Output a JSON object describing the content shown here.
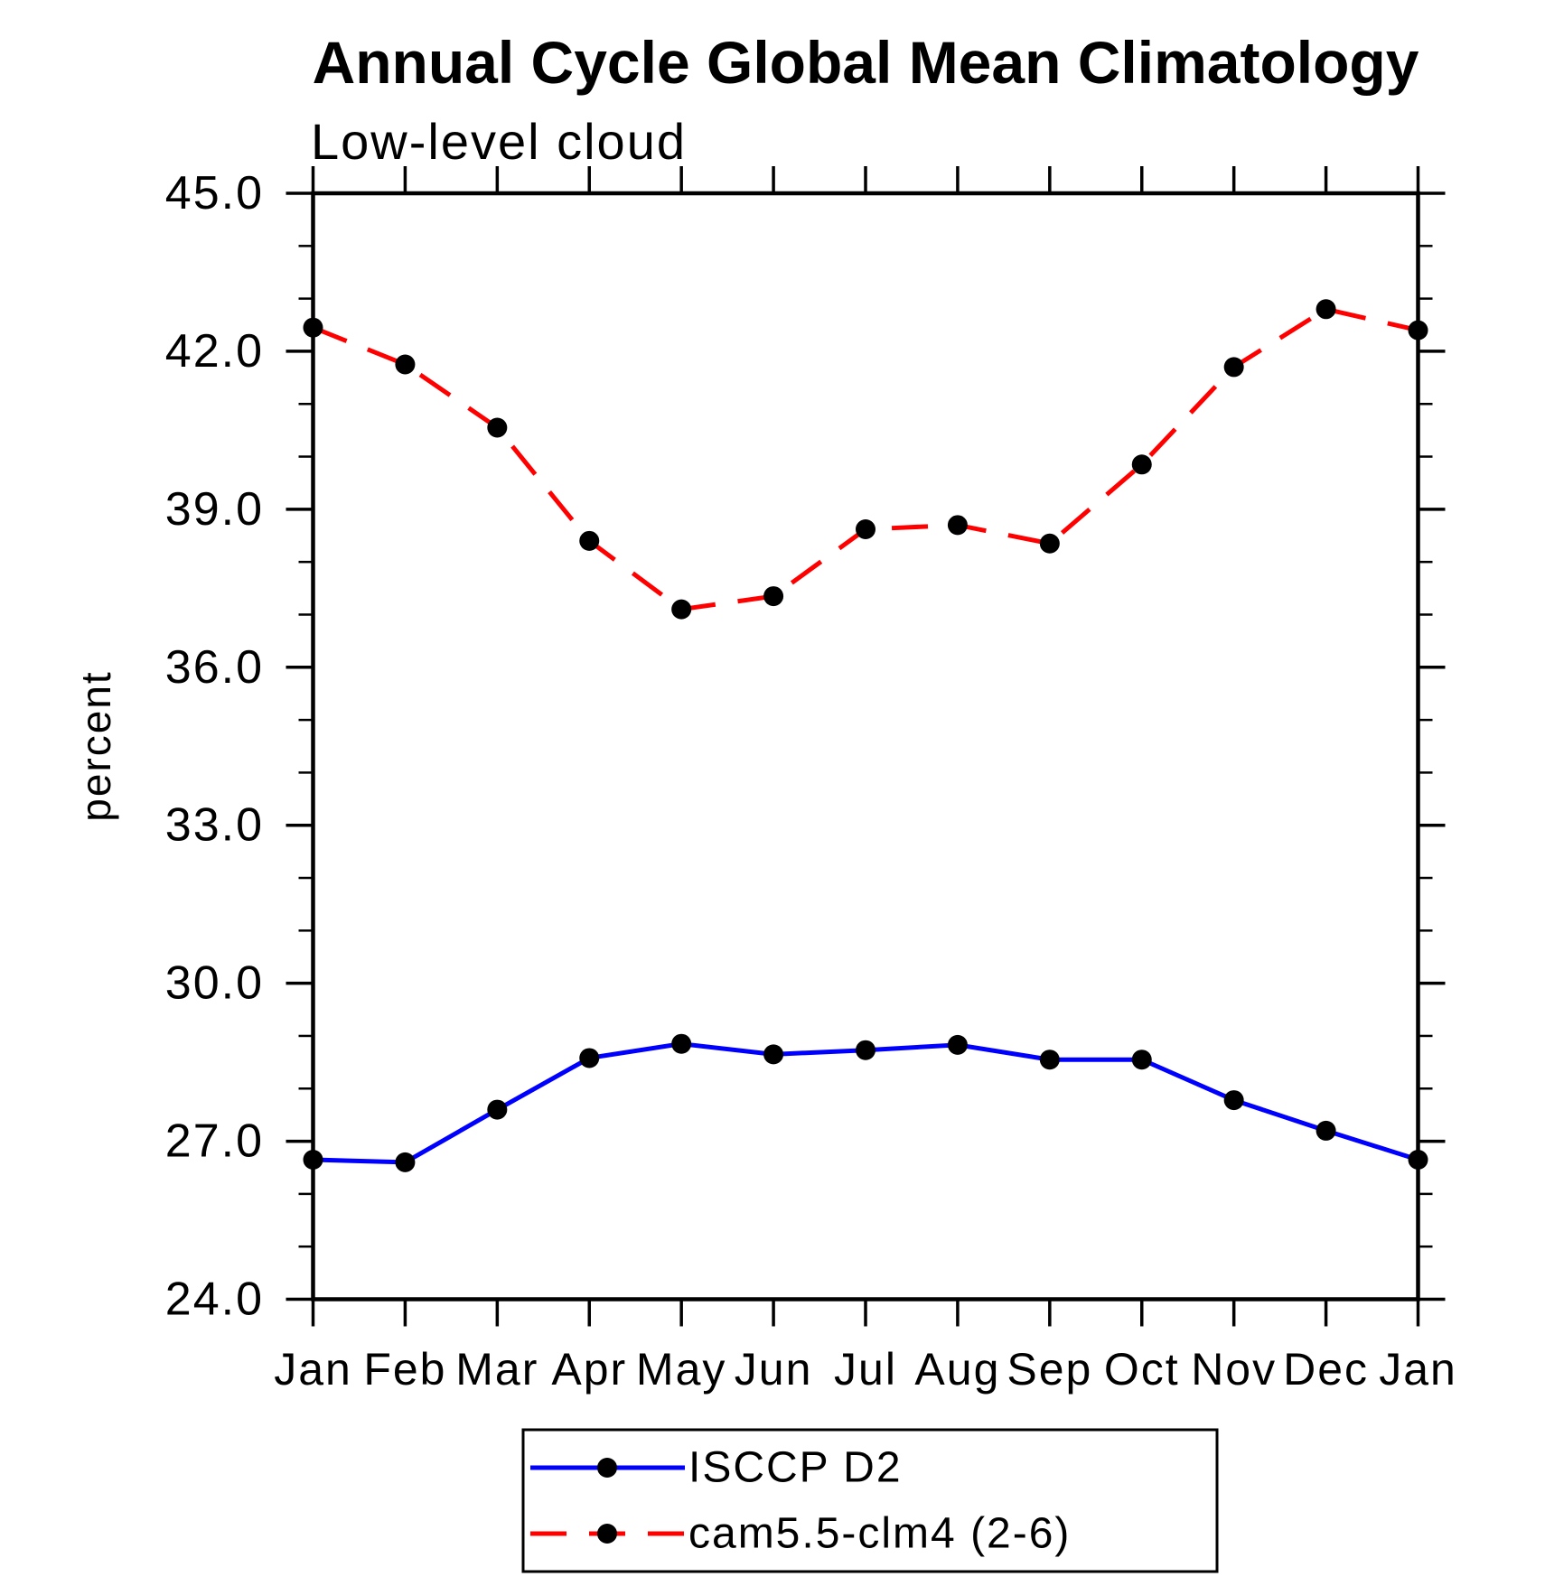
{
  "title": "Annual Cycle Global Mean Climatology",
  "subtitle": "Low-level cloud",
  "ylabel": "percent",
  "chart_data": {
    "type": "line",
    "categories": [
      "Jan",
      "Feb",
      "Mar",
      "Apr",
      "May",
      "Jun",
      "Jul",
      "Aug",
      "Sep",
      "Oct",
      "Nov",
      "Dec",
      "Jan"
    ],
    "series": [
      {
        "name": "ISCCP D2",
        "color": "#0000ff",
        "line_style": "solid",
        "marker": "filled-circle",
        "marker_color": "#000000",
        "values": [
          26.65,
          26.6,
          27.6,
          28.58,
          28.85,
          28.65,
          28.73,
          28.83,
          28.55,
          28.55,
          27.78,
          27.2,
          26.65
        ]
      },
      {
        "name": "cam5.5-clm4 (2-6)",
        "color": "#ff0000",
        "line_style": "dashed",
        "marker": "filled-circle",
        "marker_color": "#000000",
        "values": [
          42.45,
          41.75,
          40.55,
          38.4,
          37.1,
          37.35,
          38.62,
          38.7,
          38.35,
          39.85,
          41.7,
          42.8,
          42.4
        ]
      }
    ],
    "xlabel": "",
    "ylabel": "percent",
    "ylim": [
      24.0,
      45.0
    ],
    "yticks_major": [
      24.0,
      27.0,
      30.0,
      33.0,
      36.0,
      39.0,
      42.0,
      45.0
    ],
    "ytick_minor_step": 1.0,
    "ytick_label_format": "one-decimal",
    "grid": false,
    "legend_position": "bottom-center",
    "frame_color": "#000000"
  }
}
